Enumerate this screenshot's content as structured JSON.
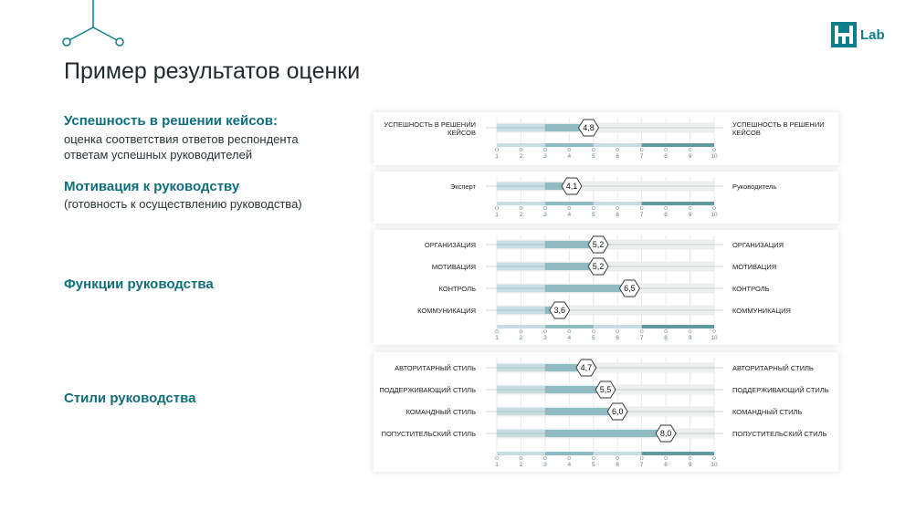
{
  "title": "Пример результатов оценки",
  "brand": {
    "text": "Lab",
    "color": "#0f7e8c"
  },
  "sections": [
    {
      "title": "Успешность в решении кейсов:",
      "subtitle_lines": [
        "оценка соответствия ответов респондента",
        "ответам успешных руководителей"
      ]
    },
    {
      "title": "Мотивация к руководству",
      "subtitle_lines": [
        "(готовность к осуществлению руководства)"
      ]
    },
    {
      "title": "Функции руководства",
      "subtitle_lines": []
    },
    {
      "title": "Стили руководства",
      "subtitle_lines": []
    }
  ],
  "chart_data": [
    {
      "type": "bar",
      "xlim": [
        1,
        10
      ],
      "ticks": [
        "1",
        "2",
        "3",
        "4",
        "5",
        "6",
        "7",
        "8",
        "9",
        "10"
      ],
      "rows": [
        {
          "left_label": "УСПЕШНОСТЬ В РЕШЕНИИ КЕЙСОВ",
          "right_label": "УСПЕШНОСТЬ В РЕШЕНИИ КЕЙСОВ",
          "value": 4.8,
          "value_label": "4,8"
        }
      ]
    },
    {
      "type": "bar",
      "xlim": [
        1,
        10
      ],
      "ticks": [
        "1",
        "2",
        "3",
        "4",
        "5",
        "6",
        "7",
        "8",
        "9",
        "10"
      ],
      "rows": [
        {
          "left_label": "Эксперт",
          "right_label": "Руководитель",
          "value": 4.1,
          "value_label": "4,1"
        }
      ]
    },
    {
      "type": "bar",
      "xlim": [
        1,
        10
      ],
      "ticks": [
        "1",
        "2",
        "3",
        "4",
        "5",
        "6",
        "7",
        "8",
        "9",
        "10"
      ],
      "rows": [
        {
          "left_label": "ОРГАНИЗАЦИЯ",
          "right_label": "ОРГАНИЗАЦИЯ",
          "value": 5.2,
          "value_label": "5,2"
        },
        {
          "left_label": "МОТИВАЦИЯ",
          "right_label": "МОТИВАЦИЯ",
          "value": 5.2,
          "value_label": "5,2"
        },
        {
          "left_label": "КОНТРОЛЬ",
          "right_label": "КОНТРОЛЬ",
          "value": 6.5,
          "value_label": "6,5"
        },
        {
          "left_label": "КОММУНИКАЦИЯ",
          "right_label": "КОММУНИКАЦИЯ",
          "value": 3.6,
          "value_label": "3,6"
        }
      ]
    },
    {
      "type": "bar",
      "xlim": [
        1,
        10
      ],
      "ticks": [
        "1",
        "2",
        "3",
        "4",
        "5",
        "6",
        "7",
        "8",
        "9",
        "10"
      ],
      "rows": [
        {
          "left_label": "АВТОРИТАРНЫЙ СТИЛЬ",
          "right_label": "АВТОРИТАРНЫЙ СТИЛЬ",
          "value": 4.7,
          "value_label": "4,7"
        },
        {
          "left_label": "ПОДДЕРЖИВАЮЩИЙ СТИЛЬ",
          "right_label": "ПОДДЕРЖИВАЮЩИЙ СТИЛЬ",
          "value": 5.5,
          "value_label": "5,5"
        },
        {
          "left_label": "КОМАНДНЫЙ СТИЛЬ",
          "right_label": "КОМАНДНЫЙ СТИЛЬ",
          "value": 6.0,
          "value_label": "6,0"
        },
        {
          "left_label": "ПОПУСТИТЕЛЬСКИЙ СТИЛЬ",
          "right_label": "ПОПУСТИТЕЛЬСКИЙ СТИЛЬ",
          "value": 8.0,
          "value_label": "8,0"
        }
      ]
    }
  ],
  "colors": {
    "accent": "#0f6e7b",
    "bar_light": "#c7dde1",
    "bar_mid": "#8fbcc3",
    "bar_dark": "#5f9aa3",
    "track": "#eef0f0"
  }
}
